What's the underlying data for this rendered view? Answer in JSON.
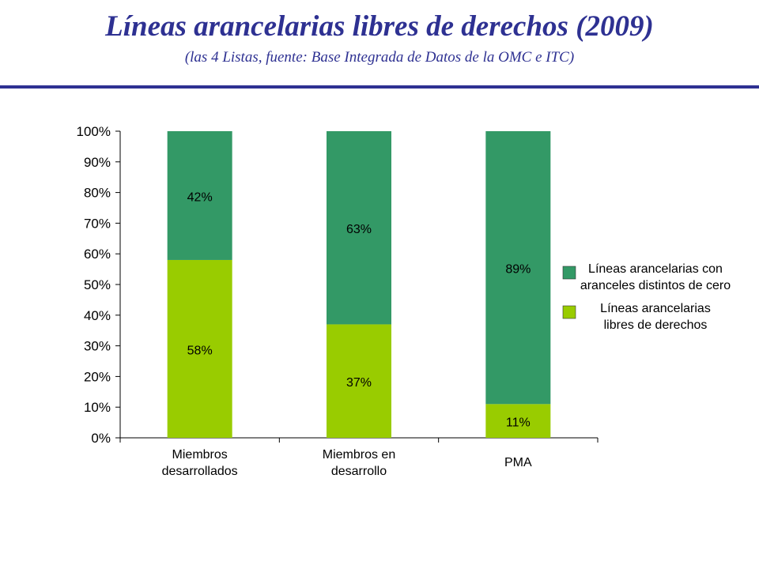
{
  "header": {
    "title": "Líneas arancelarias libres de derechos (2009)",
    "subtitle": "(las 4 Listas, fuente: Base Integrada de Datos de la OMC e ITC)"
  },
  "colors": {
    "title": "#2e3192",
    "dark_green": "#339966",
    "light_green": "#99cc00"
  },
  "chart_data": {
    "type": "bar",
    "stacked": true,
    "categories": [
      [
        "Miembros",
        "desarrollados"
      ],
      [
        "Miembros en",
        "desarrollo"
      ],
      [
        "PMA"
      ]
    ],
    "series": [
      {
        "name": "Líneas arancelarias libres de derechos",
        "legend_lines": [
          "Líneas arancelarias",
          "libres de derechos"
        ],
        "values": [
          58,
          37,
          11
        ],
        "labels": [
          "58%",
          "37%",
          "11%"
        ],
        "color": "#99cc00"
      },
      {
        "name": "Líneas arancelarias con aranceles distintos de cero",
        "legend_lines": [
          "Líneas arancelarias con",
          "aranceles distintos de cero"
        ],
        "values": [
          42,
          63,
          89
        ],
        "labels": [
          "42%",
          "63%",
          "89%"
        ],
        "color": "#339966"
      }
    ],
    "yticks": [
      "0%",
      "10%",
      "20%",
      "30%",
      "40%",
      "50%",
      "60%",
      "70%",
      "80%",
      "90%",
      "100%"
    ],
    "ylim": [
      0,
      100
    ],
    "grid": false,
    "legend_position": "right"
  }
}
